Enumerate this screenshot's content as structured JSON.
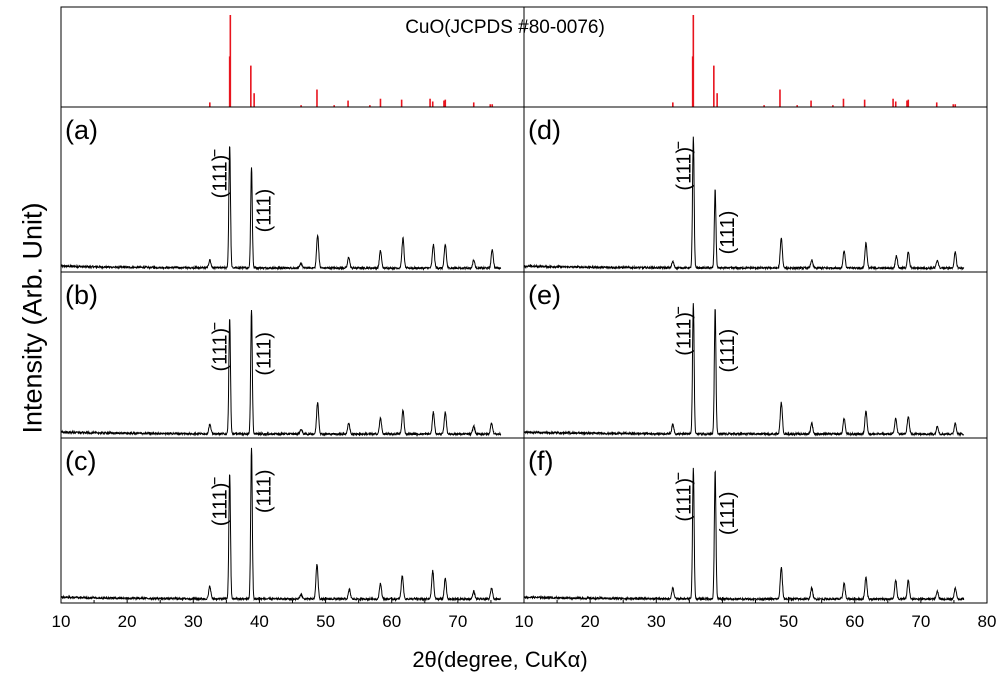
{
  "chart_data": {
    "type": "line",
    "ylabel": "Intensity (Arb. Unit)",
    "xlabel": "2θ(degree, CuKα)",
    "reference": {
      "label": "CuO(JCPDS #80-0076)",
      "color": "#e8141e",
      "sticks": [
        {
          "x": 32.5,
          "y": 0.05
        },
        {
          "x": 35.5,
          "y": 0.55
        },
        {
          "x": 35.6,
          "y": 1.0
        },
        {
          "x": 38.7,
          "y": 0.45
        },
        {
          "x": 39.2,
          "y": 0.15
        },
        {
          "x": 46.3,
          "y": 0.02
        },
        {
          "x": 48.7,
          "y": 0.19
        },
        {
          "x": 51.3,
          "y": 0.02
        },
        {
          "x": 53.4,
          "y": 0.07
        },
        {
          "x": 56.7,
          "y": 0.02
        },
        {
          "x": 58.3,
          "y": 0.09
        },
        {
          "x": 61.5,
          "y": 0.08
        },
        {
          "x": 65.8,
          "y": 0.09
        },
        {
          "x": 66.2,
          "y": 0.06
        },
        {
          "x": 67.9,
          "y": 0.07
        },
        {
          "x": 68.1,
          "y": 0.08
        },
        {
          "x": 72.4,
          "y": 0.05
        },
        {
          "x": 74.9,
          "y": 0.03
        },
        {
          "x": 75.2,
          "y": 0.03
        }
      ]
    },
    "panels": [
      {
        "label": "(a)",
        "peak_labels": [
          "(111)",
          "(111)"
        ],
        "peaks": [
          [
            32.5,
            0.05
          ],
          [
            35.5,
            0.78
          ],
          [
            38.8,
            0.64
          ],
          [
            46.3,
            0.03
          ],
          [
            48.8,
            0.21
          ],
          [
            53.5,
            0.07
          ],
          [
            58.3,
            0.11
          ],
          [
            61.7,
            0.19
          ],
          [
            66.3,
            0.15
          ],
          [
            68.1,
            0.15
          ],
          [
            72.4,
            0.05
          ],
          [
            75.2,
            0.12
          ]
        ]
      },
      {
        "label": "(d)",
        "peak_labels": [
          "(111)",
          "(111)"
        ],
        "peaks": [
          [
            32.5,
            0.04
          ],
          [
            35.6,
            0.83
          ],
          [
            38.9,
            0.5
          ],
          [
            48.9,
            0.19
          ],
          [
            53.5,
            0.05
          ],
          [
            58.4,
            0.11
          ],
          [
            61.7,
            0.16
          ],
          [
            66.3,
            0.08
          ],
          [
            68.1,
            0.1
          ],
          [
            72.5,
            0.05
          ],
          [
            75.2,
            0.1
          ]
        ]
      },
      {
        "label": "(b)",
        "peak_labels": [
          "(111)",
          "(111)"
        ],
        "peaks": [
          [
            32.5,
            0.06
          ],
          [
            35.5,
            0.73
          ],
          [
            38.8,
            0.78
          ],
          [
            46.3,
            0.03
          ],
          [
            48.8,
            0.2
          ],
          [
            53.5,
            0.07
          ],
          [
            58.3,
            0.1
          ],
          [
            61.7,
            0.15
          ],
          [
            66.3,
            0.14
          ],
          [
            68.1,
            0.14
          ],
          [
            72.4,
            0.05
          ],
          [
            75.1,
            0.07
          ]
        ]
      },
      {
        "label": "(e)",
        "peak_labels": [
          "(111)",
          "(111)"
        ],
        "peaks": [
          [
            32.5,
            0.06
          ],
          [
            35.6,
            0.83
          ],
          [
            38.9,
            0.8
          ],
          [
            48.9,
            0.2
          ],
          [
            53.5,
            0.07
          ],
          [
            58.4,
            0.1
          ],
          [
            61.7,
            0.15
          ],
          [
            66.2,
            0.1
          ],
          [
            68.1,
            0.11
          ],
          [
            72.5,
            0.05
          ],
          [
            75.2,
            0.07
          ]
        ]
      },
      {
        "label": "(c)",
        "peak_labels": [
          "(111)",
          "(111)"
        ],
        "peaks": [
          [
            32.5,
            0.08
          ],
          [
            35.5,
            0.8
          ],
          [
            38.8,
            0.96
          ],
          [
            46.3,
            0.03
          ],
          [
            48.7,
            0.22
          ],
          [
            53.6,
            0.06
          ],
          [
            58.3,
            0.1
          ],
          [
            61.6,
            0.15
          ],
          [
            66.2,
            0.18
          ],
          [
            68.1,
            0.13
          ],
          [
            72.4,
            0.05
          ],
          [
            75.1,
            0.07
          ]
        ]
      },
      {
        "label": "(f)",
        "peak_labels": [
          "(111)",
          "(111)"
        ],
        "peaks": [
          [
            32.5,
            0.07
          ],
          [
            35.6,
            0.83
          ],
          [
            38.9,
            0.82
          ],
          [
            48.9,
            0.2
          ],
          [
            53.5,
            0.07
          ],
          [
            58.4,
            0.1
          ],
          [
            61.7,
            0.14
          ],
          [
            66.2,
            0.12
          ],
          [
            68.1,
            0.12
          ],
          [
            72.5,
            0.05
          ],
          [
            75.2,
            0.07
          ]
        ]
      }
    ],
    "x_axis": {
      "left": {
        "range": [
          10,
          80
        ],
        "tick_values": [
          10,
          20,
          30,
          40,
          50,
          60,
          70
        ],
        "tick_labels": [
          "10",
          "20",
          "30",
          "40",
          "50",
          "60",
          "70"
        ]
      },
      "right": {
        "range": [
          10,
          80
        ],
        "tick_values": [
          10,
          20,
          30,
          40,
          50,
          60,
          70,
          80
        ],
        "tick_labels": [
          "10",
          "20",
          "30",
          "40",
          "50",
          "60",
          "70",
          "80"
        ]
      }
    },
    "line_color": "#000000",
    "grid": false
  }
}
